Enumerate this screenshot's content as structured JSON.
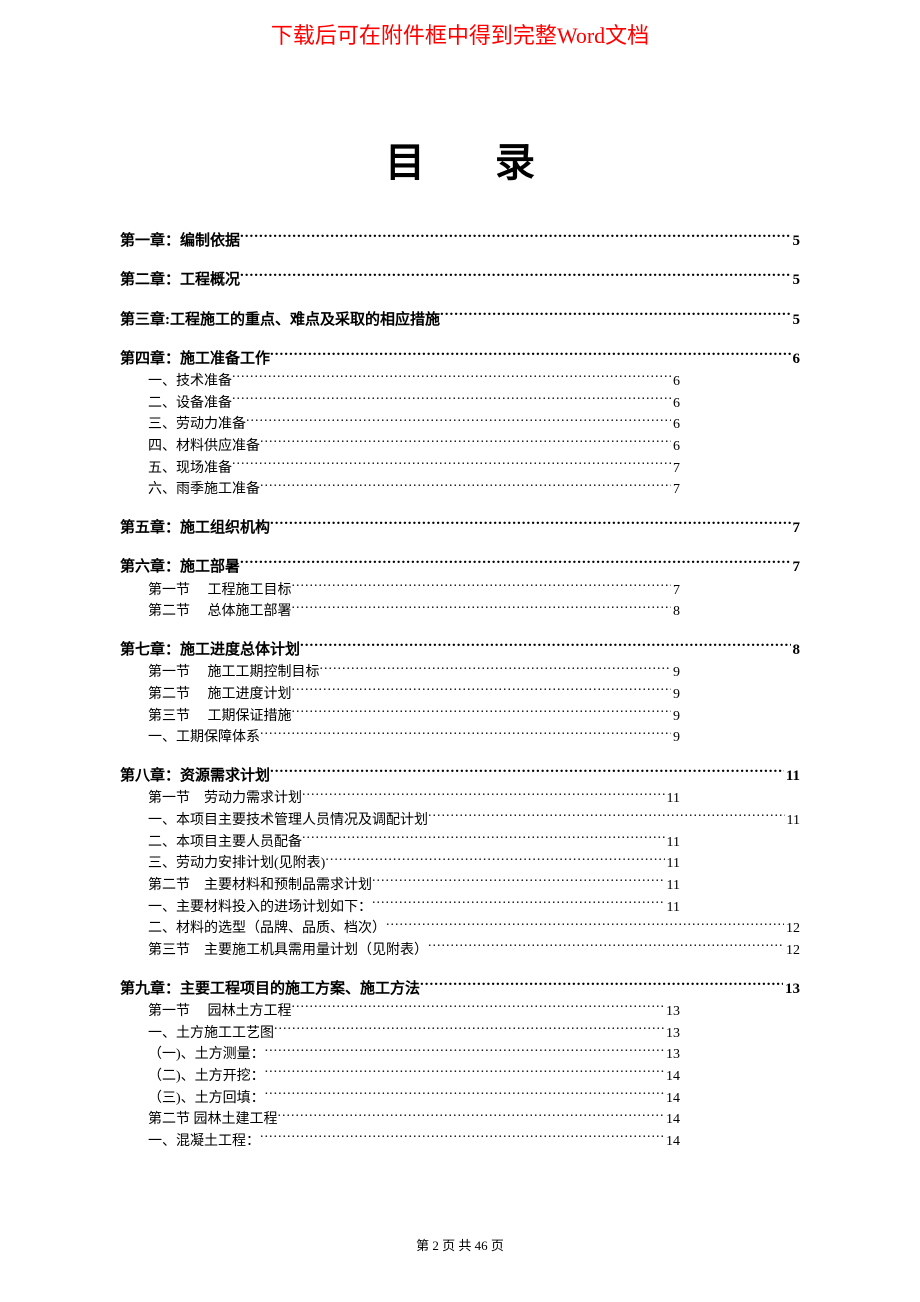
{
  "notice": {
    "text": "下载后可在附件框中得到完整Word文档",
    "color": "#ff0000"
  },
  "title": "目 录",
  "footer": "第 2 页 共 46 页",
  "entries": [
    {
      "level": "chapter",
      "label": "第一章：编制依据",
      "page": "5",
      "short": false,
      "first": true
    },
    {
      "level": "chapter",
      "label": "第二章：工程概况",
      "page": "5",
      "short": false
    },
    {
      "level": "chapter",
      "label": "第三章:工程施工的重点、难点及采取的相应措施",
      "page": "5",
      "short": false
    },
    {
      "level": "chapter",
      "label": "第四章：施工准备工作",
      "page": "6",
      "short": false
    },
    {
      "level": "sub",
      "label": "一、技术准备",
      "page": "6",
      "short": true
    },
    {
      "level": "sub",
      "label": "二、设备准备",
      "page": "6",
      "short": true
    },
    {
      "level": "sub",
      "label": "三、劳动力准备",
      "page": "6",
      "short": true
    },
    {
      "level": "sub",
      "label": "四、材料供应准备",
      "page": "6",
      "short": true
    },
    {
      "level": "sub",
      "label": "五、现场准备",
      "page": "7",
      "short": true
    },
    {
      "level": "sub",
      "label": "六、雨季施工准备",
      "page": "7",
      "short": true
    },
    {
      "level": "chapter",
      "label": "第五章：施工组织机构",
      "page": "7",
      "short": false
    },
    {
      "level": "chapter",
      "label": "第六章：施工部暑",
      "page": "7",
      "short": false
    },
    {
      "level": "sub",
      "label": "第一节　 工程施工目标",
      "page": "7",
      "short": true
    },
    {
      "level": "sub",
      "label": "第二节　 总体施工部署",
      "page": "8",
      "short": true
    },
    {
      "level": "chapter",
      "label": "第七章：施工进度总体计划",
      "page": "8",
      "short": false
    },
    {
      "level": "sub",
      "label": "第一节　 施工工期控制目标",
      "page": "9",
      "short": true
    },
    {
      "level": "sub",
      "label": "第二节　 施工进度计划",
      "page": "9",
      "short": true
    },
    {
      "level": "sub",
      "label": "第三节　 工期保证措施",
      "page": "9",
      "short": true
    },
    {
      "level": "sub",
      "label": "一、工期保障体系",
      "page": "9",
      "short": true
    },
    {
      "level": "chapter",
      "label": "第八章：资源需求计划",
      "page": "11",
      "short": false
    },
    {
      "level": "sub",
      "label": "第一节　劳动力需求计划",
      "page": "11",
      "short": true
    },
    {
      "level": "sub",
      "label": "一、本项目主要技术管理人员情况及调配计划",
      "page": "11",
      "short": false
    },
    {
      "level": "sub",
      "label": "二、本项目主要人员配备",
      "page": "11",
      "short": true
    },
    {
      "level": "sub",
      "label": "三、劳动力安排计划(见附表)",
      "page": "11",
      "short": true
    },
    {
      "level": "sub",
      "label": "第二节　主要材料和预制品需求计划",
      "page": "11",
      "short": true
    },
    {
      "level": "sub",
      "label": "一、主要材料投入的进场计划如下：",
      "page": "11",
      "short": true
    },
    {
      "level": "sub",
      "label": "二、材料的选型（品牌、品质、档次）",
      "page": "12",
      "short": false
    },
    {
      "level": "sub",
      "label": "第三节　主要施工机具需用量计划（见附表）",
      "page": "12",
      "short": false
    },
    {
      "level": "chapter",
      "label": "第九章：主要工程项目的施工方案、施工方法",
      "page": "13",
      "short": false
    },
    {
      "level": "sub",
      "label": "第一节　  园林土方工程",
      "page": "13",
      "short": true
    },
    {
      "level": "sub",
      "label": "一、土方施工工艺图",
      "page": "13",
      "short": true
    },
    {
      "level": "sub",
      "label": "（一)、土方测量：",
      "page": "13",
      "short": true
    },
    {
      "level": "sub",
      "label": "（二)、土方开挖：",
      "page": "14",
      "short": true
    },
    {
      "level": "sub",
      "label": "（三)、土方回填：",
      "page": "14",
      "short": true
    },
    {
      "level": "sub",
      "label": "第二节  园林土建工程",
      "page": "14",
      "short": true
    },
    {
      "level": "sub",
      "label": "一、混凝土工程：",
      "page": "14",
      "short": true
    }
  ]
}
